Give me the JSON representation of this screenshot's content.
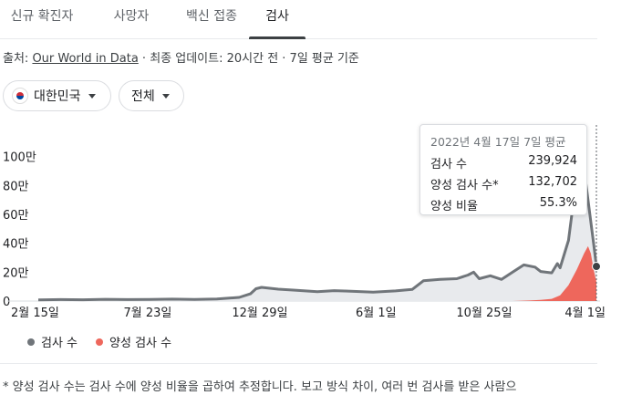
{
  "tabs": [
    {
      "label": "신규 확진자",
      "active": false
    },
    {
      "label": "사망자",
      "active": false
    },
    {
      "label": "백신 접종",
      "active": false
    },
    {
      "label": "검사",
      "active": true
    }
  ],
  "source": {
    "prefix": "출처: ",
    "link": "Our World in Data",
    "suffix": " · 최종 업데이트: 20시간 전 · 7일 평균 기준"
  },
  "filters": {
    "region": "대한민국",
    "region_icon": "korea-flag-icon",
    "scope": "전체"
  },
  "tooltip": {
    "title": "2022년 4월 17일 7일 평균",
    "rows": [
      {
        "label": "검사 수",
        "value": "239,924"
      },
      {
        "label": "양성 검사 수*",
        "value": "132,702"
      },
      {
        "label": "양성 비율",
        "value": "55.3%"
      }
    ]
  },
  "legend": [
    {
      "label": "검사 수",
      "color": "#70757a"
    },
    {
      "label": "양성 검사 수",
      "color": "#ee675c"
    }
  ],
  "footnote": "* 양성 검사 수는 검사 수에 양성 비율을 곱하여 추정합니다. 보고 방식 차이, 여러 번 검사를 받은 사람으",
  "chart_data": {
    "type": "area",
    "x_ticks": [
      "2월 15일",
      "7월 23일",
      "12월 29일",
      "6월 1일",
      "10월 25일",
      "4월 1일"
    ],
    "x_tick_t": [
      0,
      0.196,
      0.397,
      0.605,
      0.799,
      1.0
    ],
    "y_ticks": [
      0,
      200000,
      400000,
      600000,
      800000,
      1000000
    ],
    "y_tick_labels": [
      "0",
      "20만",
      "40만",
      "60만",
      "80만",
      "100만"
    ],
    "ylim": [
      0,
      1150000
    ],
    "series": [
      {
        "name": "검사 수",
        "color": "#70757a",
        "points": [
          [
            0,
            8000
          ],
          [
            0.04,
            10000
          ],
          [
            0.08,
            9000
          ],
          [
            0.12,
            12000
          ],
          [
            0.16,
            10000
          ],
          [
            0.2,
            11000
          ],
          [
            0.24,
            13000
          ],
          [
            0.28,
            11000
          ],
          [
            0.32,
            14000
          ],
          [
            0.36,
            25000
          ],
          [
            0.38,
            50000
          ],
          [
            0.39,
            85000
          ],
          [
            0.4,
            95000
          ],
          [
            0.43,
            82000
          ],
          [
            0.46,
            75000
          ],
          [
            0.5,
            65000
          ],
          [
            0.53,
            72000
          ],
          [
            0.56,
            68000
          ],
          [
            0.6,
            62000
          ],
          [
            0.64,
            70000
          ],
          [
            0.67,
            80000
          ],
          [
            0.69,
            140000
          ],
          [
            0.72,
            150000
          ],
          [
            0.75,
            155000
          ],
          [
            0.77,
            180000
          ],
          [
            0.78,
            200000
          ],
          [
            0.79,
            155000
          ],
          [
            0.81,
            175000
          ],
          [
            0.83,
            150000
          ],
          [
            0.85,
            200000
          ],
          [
            0.87,
            250000
          ],
          [
            0.89,
            235000
          ],
          [
            0.9,
            205000
          ],
          [
            0.92,
            195000
          ],
          [
            0.93,
            260000
          ],
          [
            0.935,
            230000
          ],
          [
            0.95,
            420000
          ],
          [
            0.96,
            720000
          ],
          [
            0.97,
            850000
          ],
          [
            0.975,
            1000000
          ],
          [
            0.985,
            700000
          ],
          [
            0.995,
            400000
          ],
          [
            1.0,
            240000
          ]
        ]
      },
      {
        "name": "양성 검사 수",
        "color": "#ee675c",
        "points": [
          [
            0,
            0
          ],
          [
            0.85,
            0
          ],
          [
            0.88,
            4000
          ],
          [
            0.9,
            8000
          ],
          [
            0.92,
            15000
          ],
          [
            0.935,
            40000
          ],
          [
            0.95,
            110000
          ],
          [
            0.965,
            220000
          ],
          [
            0.978,
            330000
          ],
          [
            0.985,
            380000
          ],
          [
            0.99,
            330000
          ],
          [
            0.995,
            220000
          ],
          [
            1.0,
            132700
          ]
        ]
      }
    ],
    "legend_position": "bottom-left",
    "grid": false
  }
}
